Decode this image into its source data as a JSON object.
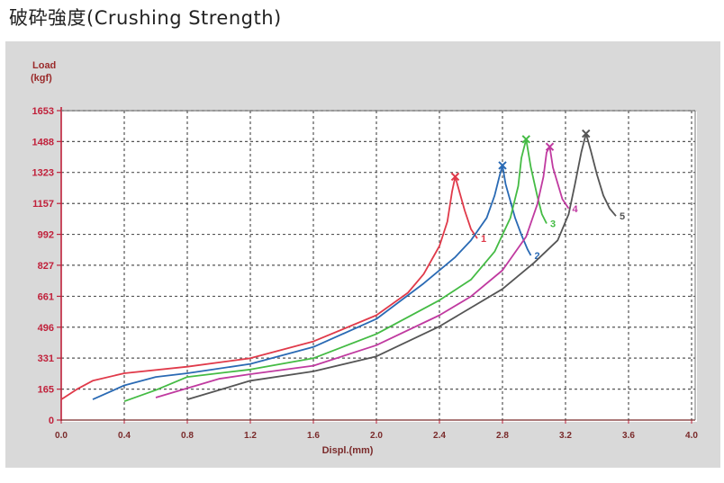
{
  "title": "破砕強度(Crushing Strength)",
  "chart_data": {
    "type": "line",
    "ylabel_lines": [
      "Load",
      "(kgf)"
    ],
    "xlabel": "Displ.(mm)",
    "xlim": [
      0.0,
      4.0
    ],
    "ylim": [
      0,
      1653
    ],
    "x_ticks": [
      "0.0",
      "0.4",
      "0.8",
      "1.2",
      "1.6",
      "2.0",
      "2.4",
      "2.8",
      "3.2",
      "3.6",
      "4.0"
    ],
    "y_ticks": [
      "0",
      "165",
      "331",
      "496",
      "661",
      "827",
      "992",
      "1157",
      "1323",
      "1488",
      "1653"
    ],
    "grid": true,
    "colors": {
      "frame_bg": "#d9d9d9",
      "plot_bg": "#ffffff",
      "grid": "#555555",
      "axis": "#c0203a"
    },
    "series": [
      {
        "label": "1",
        "color": "#e03a4a",
        "points": [
          [
            0.0,
            110
          ],
          [
            0.1,
            165
          ],
          [
            0.2,
            210
          ],
          [
            0.4,
            250
          ],
          [
            0.8,
            285
          ],
          [
            1.2,
            330
          ],
          [
            1.6,
            420
          ],
          [
            2.0,
            560
          ],
          [
            2.2,
            680
          ],
          [
            2.3,
            780
          ],
          [
            2.4,
            930
          ],
          [
            2.45,
            1060
          ],
          [
            2.48,
            1220
          ],
          [
            2.5,
            1300
          ],
          [
            2.52,
            1240
          ],
          [
            2.56,
            1120
          ],
          [
            2.6,
            1020
          ],
          [
            2.64,
            970
          ]
        ]
      },
      {
        "label": "2",
        "color": "#2a6ab4",
        "points": [
          [
            0.2,
            110
          ],
          [
            0.4,
            185
          ],
          [
            0.6,
            230
          ],
          [
            0.8,
            250
          ],
          [
            1.2,
            300
          ],
          [
            1.6,
            390
          ],
          [
            2.0,
            540
          ],
          [
            2.3,
            730
          ],
          [
            2.5,
            870
          ],
          [
            2.6,
            960
          ],
          [
            2.7,
            1080
          ],
          [
            2.75,
            1200
          ],
          [
            2.78,
            1300
          ],
          [
            2.8,
            1360
          ],
          [
            2.82,
            1260
          ],
          [
            2.88,
            1080
          ],
          [
            2.92,
            990
          ],
          [
            2.96,
            910
          ],
          [
            2.98,
            880
          ]
        ]
      },
      {
        "label": "3",
        "color": "#44bb44",
        "points": [
          [
            0.4,
            100
          ],
          [
            0.6,
            160
          ],
          [
            0.8,
            230
          ],
          [
            1.2,
            270
          ],
          [
            1.6,
            330
          ],
          [
            2.0,
            460
          ],
          [
            2.4,
            640
          ],
          [
            2.6,
            750
          ],
          [
            2.75,
            900
          ],
          [
            2.85,
            1080
          ],
          [
            2.9,
            1250
          ],
          [
            2.92,
            1400
          ],
          [
            2.95,
            1500
          ],
          [
            2.98,
            1350
          ],
          [
            3.02,
            1200
          ],
          [
            3.05,
            1100
          ],
          [
            3.08,
            1050
          ]
        ]
      },
      {
        "label": "4",
        "color": "#c03aa0",
        "points": [
          [
            0.6,
            120
          ],
          [
            0.8,
            170
          ],
          [
            1.0,
            220
          ],
          [
            1.2,
            245
          ],
          [
            1.6,
            290
          ],
          [
            2.0,
            400
          ],
          [
            2.4,
            560
          ],
          [
            2.6,
            660
          ],
          [
            2.8,
            800
          ],
          [
            2.95,
            980
          ],
          [
            3.02,
            1150
          ],
          [
            3.06,
            1300
          ],
          [
            3.08,
            1430
          ],
          [
            3.1,
            1460
          ],
          [
            3.12,
            1350
          ],
          [
            3.18,
            1180
          ],
          [
            3.22,
            1130
          ]
        ]
      },
      {
        "label": "5",
        "color": "#555555",
        "points": [
          [
            0.8,
            110
          ],
          [
            1.0,
            160
          ],
          [
            1.2,
            210
          ],
          [
            1.6,
            260
          ],
          [
            2.0,
            340
          ],
          [
            2.4,
            500
          ],
          [
            2.8,
            700
          ],
          [
            3.0,
            840
          ],
          [
            3.15,
            960
          ],
          [
            3.22,
            1100
          ],
          [
            3.26,
            1260
          ],
          [
            3.3,
            1430
          ],
          [
            3.33,
            1530
          ],
          [
            3.36,
            1440
          ],
          [
            3.4,
            1310
          ],
          [
            3.44,
            1200
          ],
          [
            3.48,
            1130
          ],
          [
            3.52,
            1090
          ]
        ]
      }
    ]
  }
}
